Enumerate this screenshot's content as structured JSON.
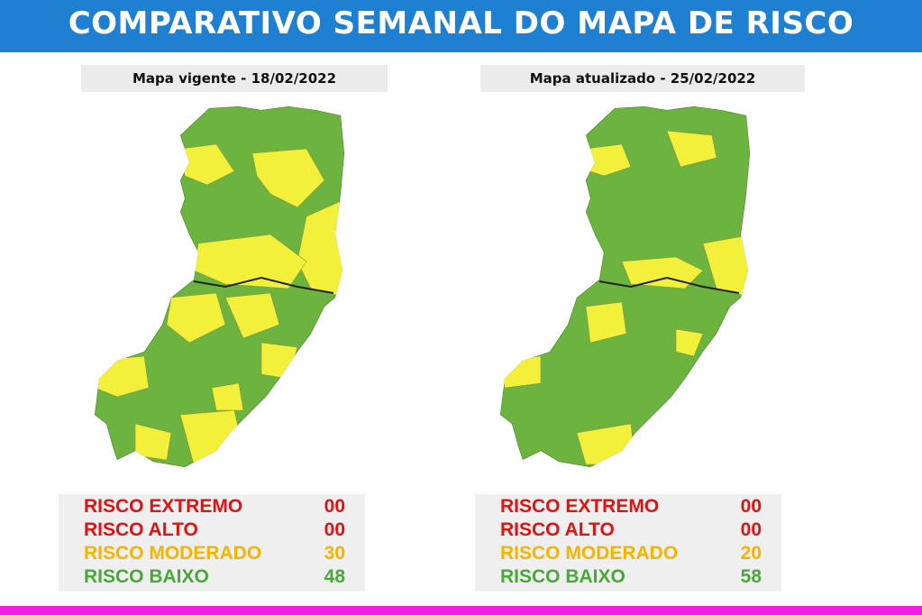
{
  "header": {
    "title": "COMPARATIVO SEMANAL DO MAPA DE RISCO"
  },
  "panels": [
    {
      "label": "Mapa vigente - 18/02/2022",
      "risks": [
        {
          "name": "RISCO EXTREMO",
          "count": "00"
        },
        {
          "name": "RISCO ALTO",
          "count": "00"
        },
        {
          "name": "RISCO MODERADO",
          "count": "30"
        },
        {
          "name": "RISCO BAIXO",
          "count": "48"
        }
      ]
    },
    {
      "label": "Mapa atualizado - 25/02/2022",
      "risks": [
        {
          "name": "RISCO EXTREMO",
          "count": "00"
        },
        {
          "name": "RISCO ALTO",
          "count": "00"
        },
        {
          "name": "RISCO MODERADO",
          "count": "20"
        },
        {
          "name": "RISCO BAIXO",
          "count": "58"
        }
      ]
    }
  ]
}
